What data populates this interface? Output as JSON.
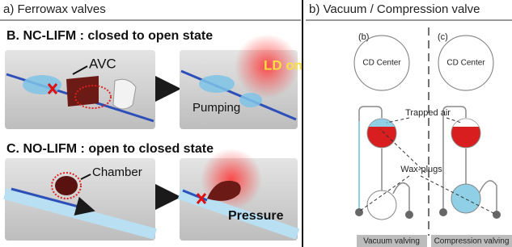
{
  "panel_a": {
    "title": "a) Ferrowax valves",
    "sections": [
      {
        "heading": "B. NC-LIFM : closed to open state",
        "labels": [
          "AVC",
          "LD on",
          "Pumping"
        ]
      },
      {
        "heading": "C. NO-LIFM : open to closed state",
        "labels": [
          "Chamber",
          "Pressure"
        ]
      }
    ]
  },
  "panel_b": {
    "title": "b) Vacuum / Compression valve",
    "columns": [
      {
        "tag": "(b)",
        "center": "CD Center",
        "caption": "Vacuum valving"
      },
      {
        "tag": "(c)",
        "center": "CD Center",
        "caption": "Compression valving"
      }
    ],
    "annotations": [
      "Trapped air",
      "Wax-plugs"
    ]
  }
}
